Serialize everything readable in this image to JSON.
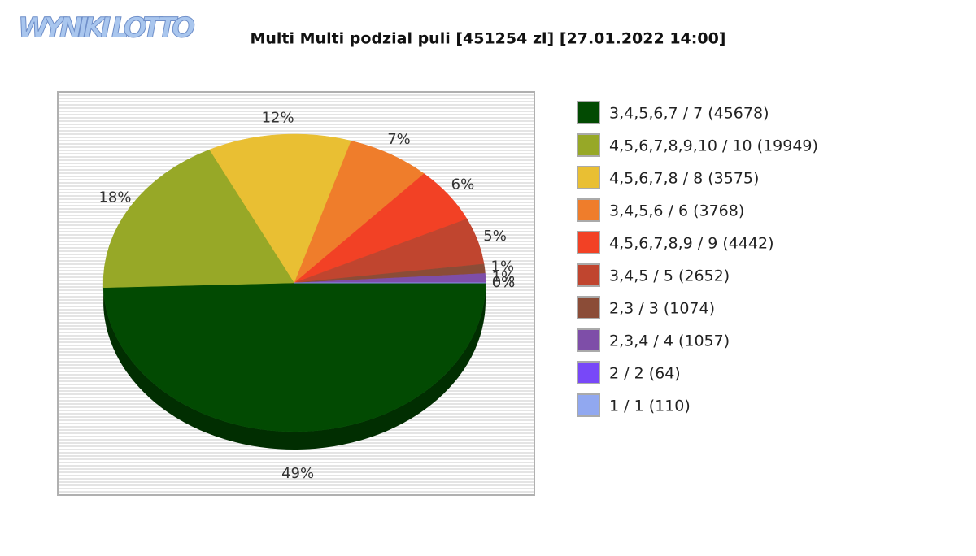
{
  "logo": "WYNIKI LOTTO",
  "chart_data": {
    "type": "pie",
    "title": "Multi Multi podzial puli [451254 zl] [27.01.2022 14:00]",
    "categories": [
      "3,4,5,6,7 / 7 (45678)",
      "4,5,6,7,8,9,10 / 10 (19949)",
      "4,5,6,7,8 / 8 (3575)",
      "3,4,5,6 / 6 (3768)",
      "4,5,6,7,8,9 / 9 (4442)",
      "3,4,5 / 5 (2652)",
      "2,3 / 3 (1074)",
      "2,3,4 / 4 (1057)",
      "2 / 2 (64)",
      "1 / 1 (110)"
    ],
    "values": [
      49,
      18,
      12,
      7,
      6,
      5,
      1,
      1,
      0,
      0
    ],
    "value_labels": [
      "49%",
      "18%",
      "12%",
      "7%",
      "6%",
      "5%",
      "1%",
      "1%",
      "0%",
      "0%"
    ],
    "colors": [
      "#024a02",
      "#97a827",
      "#e9bf33",
      "#ef7d2b",
      "#f24125",
      "#c0452f",
      "#8b4c37",
      "#7e4ea8",
      "#7848f8",
      "#91a8f0"
    ],
    "legend": "right"
  }
}
